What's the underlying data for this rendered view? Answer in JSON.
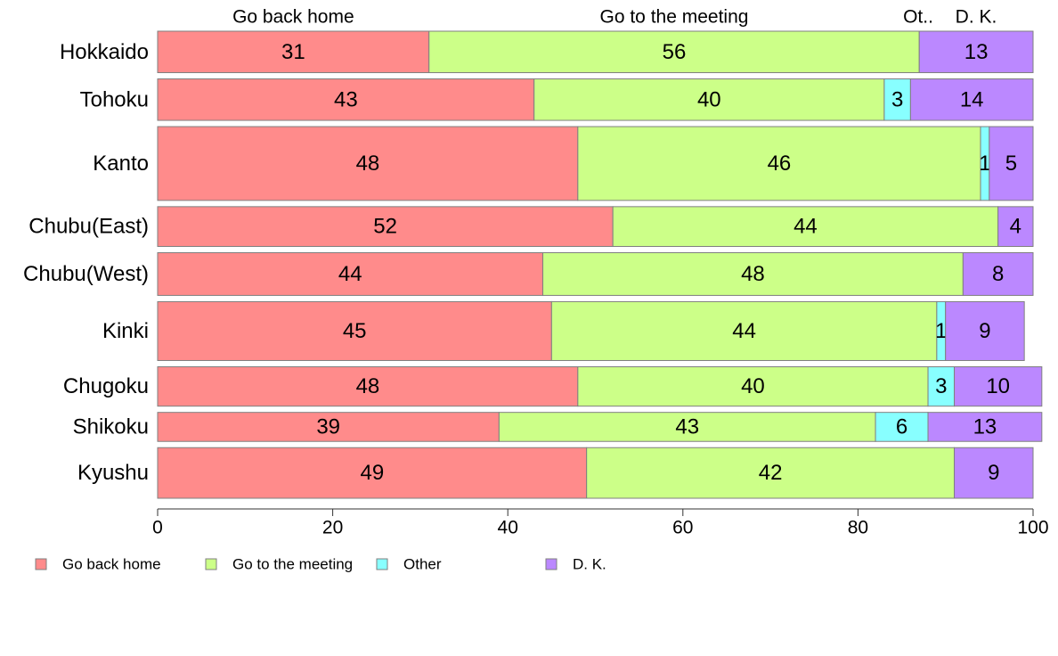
{
  "chart_data": {
    "type": "bar",
    "orientation": "horizontal",
    "stacked": true,
    "categories": [
      "Hokkaido",
      "Tohoku",
      "Kanto",
      "Chubu(East)",
      "Chubu(West)",
      "Kinki",
      "Chugoku",
      "Shikoku",
      "Kyushu"
    ],
    "category_widths": [
      1.0,
      1.0,
      1.78,
      0.96,
      1.03,
      1.42,
      0.95,
      0.7,
      1.22
    ],
    "series": [
      {
        "name": "Go back home",
        "values": [
          31,
          43,
          48,
          52,
          44,
          45,
          48,
          39,
          49
        ],
        "color": "#FF8B8B"
      },
      {
        "name": "Go to the meeting",
        "values": [
          56,
          40,
          46,
          44,
          48,
          44,
          40,
          43,
          42
        ],
        "color": "#CCFF88"
      },
      {
        "name": "Other",
        "values": [
          0,
          3,
          1,
          0,
          0,
          1,
          3,
          6,
          0
        ],
        "color": "#88FFFF"
      },
      {
        "name": "D. K.",
        "values": [
          13,
          14,
          5,
          4,
          8,
          9,
          10,
          13,
          9
        ],
        "color": "#BB88FF"
      }
    ],
    "top_labels": [
      "Go back home",
      "Go to the meeting",
      "Ot..",
      "D. K."
    ],
    "xlim": [
      0,
      100
    ],
    "xticks": [
      0,
      20,
      40,
      60,
      80,
      100
    ],
    "grid": false,
    "legend_position": "bottom-left",
    "bar_border_color": "#7F7F7F"
  }
}
